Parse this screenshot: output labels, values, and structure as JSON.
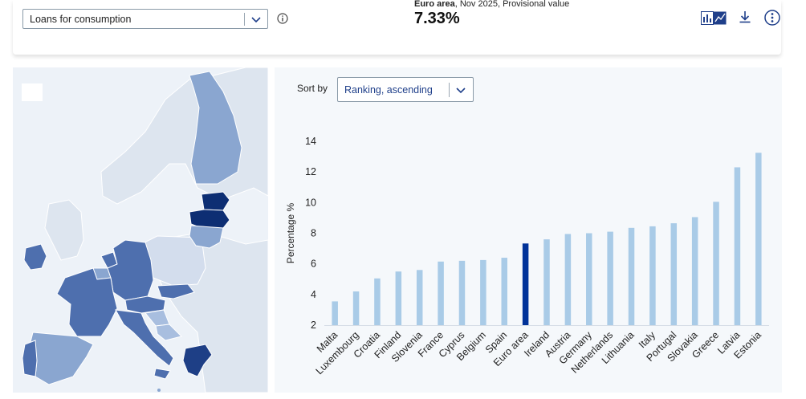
{
  "header": {
    "indicator_select": {
      "value": "Loans for consumption"
    },
    "kpi": {
      "area": "Euro area",
      "detail": ", Nov 2025, Provisional value",
      "value": "7.33%"
    },
    "icons": {
      "info": "info-icon",
      "view_toggle": "chart-view-toggle-icon",
      "download": "download-icon",
      "more": "more-options-icon"
    }
  },
  "sort": {
    "label": "Sort by",
    "value": "Ranking, ascending"
  },
  "colors": {
    "bar_default": "#a9cbe7",
    "bar_highlight": "#003299",
    "map_dark": "#0d2e73",
    "map_mid": "#4e6fae",
    "map_light": "#8aa6d0",
    "map_lightest": "#a8bedf",
    "map_nodata": "#dde5ef",
    "sea": "#edf2f8"
  },
  "chart_data": {
    "type": "bar",
    "ylabel": "Percentage %",
    "ylim": [
      2,
      14
    ],
    "yticks": [
      2,
      4,
      6,
      8,
      10,
      12,
      14
    ],
    "highlight": "Euro area",
    "grid": false,
    "categories": [
      "Malta",
      "Luxembourg",
      "Croatia",
      "Finland",
      "Slovenia",
      "France",
      "Cyprus",
      "Belgium",
      "Spain",
      "Euro area",
      "Ireland",
      "Austria",
      "Germany",
      "Netherlands",
      "Lithuania",
      "Italy",
      "Portugal",
      "Slovakia",
      "Greece",
      "Latvia",
      "Estonia"
    ],
    "values": [
      3.55,
      4.2,
      5.05,
      5.5,
      5.6,
      6.15,
      6.2,
      6.25,
      6.4,
      7.33,
      7.6,
      7.95,
      8.0,
      8.1,
      8.35,
      8.45,
      8.65,
      9.05,
      10.05,
      12.3,
      13.25
    ]
  }
}
